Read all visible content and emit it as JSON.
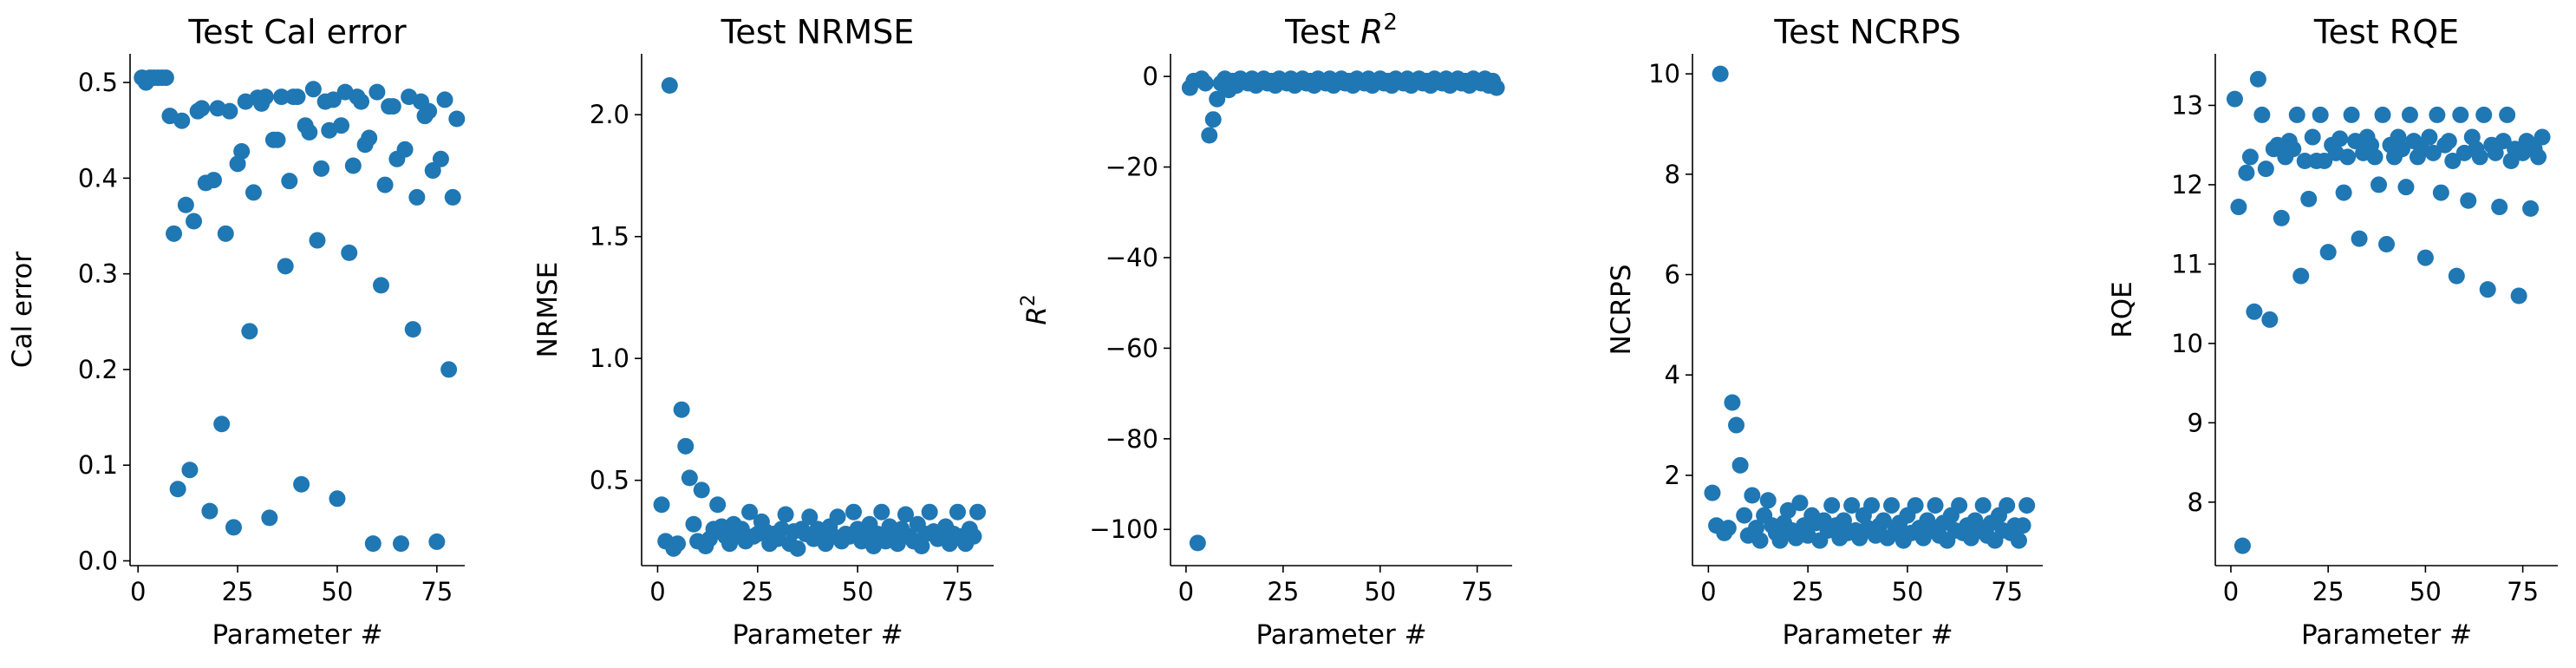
{
  "colors": {
    "marker": "#1f77b4",
    "axis": "#000000",
    "background": "#ffffff"
  },
  "chart_data": [
    {
      "type": "scatter",
      "title": "Test Cal error",
      "xlabel": "Parameter #",
      "ylabel": "Cal error",
      "xlim": [
        -2,
        82
      ],
      "ylim": [
        -0.005,
        0.53
      ],
      "xticks": [
        0,
        25,
        50,
        75
      ],
      "xtick_labels": [
        "0",
        "25",
        "50",
        "75"
      ],
      "yticks": [
        0.0,
        0.1,
        0.2,
        0.3,
        0.4,
        0.5
      ],
      "ytick_labels": [
        "0.0",
        "0.1",
        "0.2",
        "0.3",
        "0.4",
        "0.5"
      ],
      "grid": false,
      "x": [
        1,
        2,
        3,
        4,
        5,
        6,
        7,
        8,
        9,
        10,
        11,
        12,
        13,
        14,
        15,
        16,
        17,
        18,
        19,
        20,
        21,
        22,
        23,
        24,
        25,
        26,
        27,
        28,
        29,
        30,
        31,
        32,
        33,
        34,
        35,
        36,
        37,
        38,
        39,
        40,
        41,
        42,
        43,
        44,
        45,
        46,
        47,
        48,
        49,
        50,
        51,
        52,
        53,
        54,
        55,
        56,
        57,
        58,
        59,
        60,
        61,
        62,
        63,
        64,
        65,
        66,
        67,
        68,
        69,
        70,
        71,
        72,
        73,
        74,
        75,
        76,
        77,
        78,
        79,
        80
      ],
      "y": [
        0.505,
        0.5,
        0.505,
        0.505,
        0.505,
        0.505,
        0.505,
        0.465,
        0.342,
        0.075,
        0.46,
        0.372,
        0.095,
        0.355,
        0.47,
        0.473,
        0.395,
        0.052,
        0.398,
        0.473,
        0.143,
        0.342,
        0.47,
        0.035,
        0.415,
        0.428,
        0.48,
        0.24,
        0.385,
        0.484,
        0.478,
        0.485,
        0.045,
        0.44,
        0.44,
        0.485,
        0.308,
        0.397,
        0.485,
        0.485,
        0.08,
        0.455,
        0.448,
        0.493,
        0.335,
        0.41,
        0.48,
        0.45,
        0.482,
        0.065,
        0.455,
        0.49,
        0.322,
        0.413,
        0.485,
        0.48,
        0.435,
        0.442,
        0.018,
        0.49,
        0.288,
        0.393,
        0.475,
        0.475,
        0.42,
        0.018,
        0.43,
        0.485,
        0.242,
        0.38,
        0.48,
        0.465,
        0.47,
        0.408,
        0.02,
        0.42,
        0.482,
        0.2,
        0.38,
        0.462
      ]
    },
    {
      "type": "scatter",
      "title": "Test NRMSE",
      "xlabel": "Parameter #",
      "ylabel": "NRMSE",
      "xlim": [
        -4,
        84
      ],
      "ylim": [
        0.15,
        2.25
      ],
      "xticks": [
        0,
        25,
        50,
        75
      ],
      "xtick_labels": [
        "0",
        "25",
        "50",
        "75"
      ],
      "yticks": [
        0.5,
        1.0,
        1.5,
        2.0
      ],
      "ytick_labels": [
        "0.5",
        "1.0",
        "1.5",
        "2.0"
      ],
      "grid": false,
      "x": [
        1,
        2,
        3,
        4,
        5,
        6,
        7,
        8,
        9,
        10,
        11,
        12,
        13,
        14,
        15,
        16,
        17,
        18,
        19,
        20,
        21,
        22,
        23,
        24,
        25,
        26,
        27,
        28,
        29,
        30,
        31,
        32,
        33,
        34,
        35,
        36,
        37,
        38,
        39,
        40,
        41,
        42,
        43,
        44,
        45,
        46,
        47,
        48,
        49,
        50,
        51,
        52,
        53,
        54,
        55,
        56,
        57,
        58,
        59,
        60,
        61,
        62,
        63,
        64,
        65,
        66,
        67,
        68,
        69,
        70,
        71,
        72,
        73,
        74,
        75,
        76,
        77,
        78,
        79,
        80
      ],
      "y": [
        0.4,
        0.25,
        2.12,
        0.22,
        0.24,
        0.79,
        0.64,
        0.51,
        0.32,
        0.25,
        0.46,
        0.23,
        0.26,
        0.3,
        0.4,
        0.31,
        0.27,
        0.24,
        0.32,
        0.28,
        0.3,
        0.25,
        0.37,
        0.27,
        0.28,
        0.33,
        0.29,
        0.24,
        0.28,
        0.26,
        0.3,
        0.36,
        0.24,
        0.29,
        0.22,
        0.3,
        0.28,
        0.35,
        0.26,
        0.3,
        0.28,
        0.24,
        0.31,
        0.27,
        0.35,
        0.25,
        0.28,
        0.27,
        0.37,
        0.3,
        0.25,
        0.28,
        0.32,
        0.23,
        0.28,
        0.37,
        0.25,
        0.31,
        0.28,
        0.24,
        0.3,
        0.36,
        0.27,
        0.25,
        0.32,
        0.23,
        0.28,
        0.37,
        0.29,
        0.26,
        0.28,
        0.31,
        0.24,
        0.28,
        0.37,
        0.27,
        0.24,
        0.3,
        0.27,
        0.37
      ]
    },
    {
      "type": "scatter",
      "title": "Test R^2",
      "title_text": "Test ",
      "title_math": "R",
      "title_sup": "2",
      "xlabel": "Parameter #",
      "ylabel": "R^2",
      "ylabel_math": "R",
      "ylabel_sup": "2",
      "xlim": [
        -4,
        84
      ],
      "ylim": [
        -108,
        5
      ],
      "xticks": [
        0,
        25,
        50,
        75
      ],
      "xtick_labels": [
        "0",
        "25",
        "50",
        "75"
      ],
      "yticks": [
        -100,
        -80,
        -60,
        -40,
        -20,
        0
      ],
      "ytick_labels": [
        "−100",
        "−80",
        "−60",
        "−40",
        "−20",
        "0"
      ],
      "grid": false,
      "x": [
        1,
        2,
        3,
        4,
        5,
        6,
        7,
        8,
        9,
        10,
        11,
        12,
        13,
        14,
        15,
        16,
        17,
        18,
        19,
        20,
        21,
        22,
        23,
        24,
        25,
        26,
        27,
        28,
        29,
        30,
        31,
        32,
        33,
        34,
        35,
        36,
        37,
        38,
        39,
        40,
        41,
        42,
        43,
        44,
        45,
        46,
        47,
        48,
        49,
        50,
        51,
        52,
        53,
        54,
        55,
        56,
        57,
        58,
        59,
        60,
        61,
        62,
        63,
        64,
        65,
        66,
        67,
        68,
        69,
        70,
        71,
        72,
        73,
        74,
        75,
        76,
        77,
        78,
        79,
        80
      ],
      "y": [
        -2.5,
        -1,
        -103,
        -0.5,
        -1.5,
        -13,
        -9.5,
        -5,
        -1.5,
        -0.5,
        -3,
        -1,
        -2,
        -0.5,
        -1,
        -1.5,
        -0.5,
        -2,
        -1,
        -0.5,
        -1.5,
        -1,
        -2,
        -0.5,
        -1,
        -1.5,
        -0.5,
        -2,
        -1,
        -0.5,
        -1.5,
        -1,
        -2,
        -0.5,
        -1,
        -1.5,
        -0.5,
        -2,
        -1,
        -0.5,
        -1.5,
        -1,
        -2,
        -0.5,
        -1,
        -1.5,
        -0.5,
        -2,
        -1,
        -0.5,
        -1.5,
        -1,
        -2,
        -0.5,
        -1,
        -1.5,
        -0.5,
        -2,
        -1,
        -0.5,
        -1.5,
        -1,
        -2,
        -0.5,
        -1,
        -1.5,
        -0.5,
        -2,
        -1,
        -0.5,
        -1.5,
        -1,
        -2,
        -0.5,
        -1,
        -1.5,
        -0.5,
        -2,
        -1,
        -2.5
      ]
    },
    {
      "type": "scatter",
      "title": "Test NCRPS",
      "xlabel": "Parameter #",
      "ylabel": "NCRPS",
      "xlim": [
        -4,
        84
      ],
      "ylim": [
        0.2,
        10.4
      ],
      "xticks": [
        0,
        25,
        50,
        75
      ],
      "xtick_labels": [
        "0",
        "25",
        "50",
        "75"
      ],
      "yticks": [
        2,
        4,
        6,
        8,
        10
      ],
      "ytick_labels": [
        "2",
        "4",
        "6",
        "8",
        "10"
      ],
      "grid": false,
      "x": [
        1,
        2,
        3,
        4,
        5,
        6,
        7,
        8,
        9,
        10,
        11,
        12,
        13,
        14,
        15,
        16,
        17,
        18,
        19,
        20,
        21,
        22,
        23,
        24,
        25,
        26,
        27,
        28,
        29,
        30,
        31,
        32,
        33,
        34,
        35,
        36,
        37,
        38,
        39,
        40,
        41,
        42,
        43,
        44,
        45,
        46,
        47,
        48,
        49,
        50,
        51,
        52,
        53,
        54,
        55,
        56,
        57,
        58,
        59,
        60,
        61,
        62,
        63,
        64,
        65,
        66,
        67,
        68,
        69,
        70,
        71,
        72,
        73,
        74,
        75,
        76,
        77,
        78,
        79,
        80
      ],
      "y": [
        1.65,
        1.0,
        10.0,
        0.85,
        0.95,
        3.45,
        3.0,
        2.2,
        1.2,
        0.8,
        1.6,
        0.95,
        0.7,
        1.2,
        1.5,
        1.0,
        0.85,
        0.7,
        1.05,
        1.3,
        0.9,
        0.75,
        1.45,
        1.0,
        0.8,
        1.2,
        1.05,
        0.7,
        1.1,
        0.9,
        1.4,
        1.0,
        0.75,
        1.1,
        0.85,
        1.4,
        0.9,
        0.75,
        1.2,
        0.95,
        1.4,
        0.8,
        1.0,
        1.1,
        0.75,
        1.4,
        0.9,
        1.05,
        0.7,
        1.2,
        0.85,
        1.4,
        0.95,
        0.75,
        1.1,
        0.9,
        1.4,
        0.8,
        1.05,
        0.7,
        1.2,
        0.9,
        1.4,
        0.85,
        1.0,
        0.75,
        1.1,
        0.9,
        1.4,
        0.8,
        1.05,
        0.7,
        1.2,
        0.9,
        1.4,
        0.85,
        1.0,
        0.7,
        1.0,
        1.4
      ]
    },
    {
      "type": "scatter",
      "title": "Test RQE",
      "xlabel": "Parameter #",
      "ylabel": "RQE",
      "xlim": [
        -4,
        84
      ],
      "ylim": [
        7.2,
        13.65
      ],
      "xticks": [
        0,
        25,
        50,
        75
      ],
      "xtick_labels": [
        "0",
        "25",
        "50",
        "75"
      ],
      "yticks": [
        8,
        9,
        10,
        11,
        12,
        13
      ],
      "ytick_labels": [
        "8",
        "9",
        "10",
        "11",
        "12",
        "13"
      ],
      "grid": false,
      "x": [
        1,
        2,
        3,
        4,
        5,
        6,
        7,
        8,
        9,
        10,
        11,
        12,
        13,
        14,
        15,
        16,
        17,
        18,
        19,
        20,
        21,
        22,
        23,
        24,
        25,
        26,
        27,
        28,
        29,
        30,
        31,
        32,
        33,
        34,
        35,
        36,
        37,
        38,
        39,
        40,
        41,
        42,
        43,
        44,
        45,
        46,
        47,
        48,
        49,
        50,
        51,
        52,
        53,
        54,
        55,
        56,
        57,
        58,
        59,
        60,
        61,
        62,
        63,
        64,
        65,
        66,
        67,
        68,
        69,
        70,
        71,
        72,
        73,
        74,
        75,
        76,
        77,
        78,
        79,
        80
      ],
      "y": [
        13.08,
        11.72,
        7.45,
        12.15,
        12.35,
        10.4,
        13.33,
        12.88,
        12.2,
        10.3,
        12.45,
        12.5,
        11.58,
        12.35,
        12.55,
        12.45,
        12.88,
        10.85,
        12.3,
        11.82,
        12.6,
        12.3,
        12.88,
        12.3,
        11.15,
        12.5,
        12.4,
        12.58,
        11.9,
        12.35,
        12.88,
        12.55,
        11.32,
        12.4,
        12.6,
        12.5,
        12.35,
        12.0,
        12.88,
        11.25,
        12.5,
        12.35,
        12.6,
        12.45,
        11.97,
        12.88,
        12.55,
        12.35,
        12.45,
        11.08,
        12.6,
        12.4,
        12.88,
        11.9,
        12.5,
        12.55,
        12.3,
        10.85,
        12.88,
        12.4,
        11.8,
        12.6,
        12.45,
        12.35,
        12.88,
        10.68,
        12.5,
        12.4,
        11.72,
        12.55,
        12.88,
        12.3,
        12.45,
        10.6,
        12.4,
        12.55,
        11.7,
        12.45,
        12.35,
        12.6
      ]
    }
  ]
}
